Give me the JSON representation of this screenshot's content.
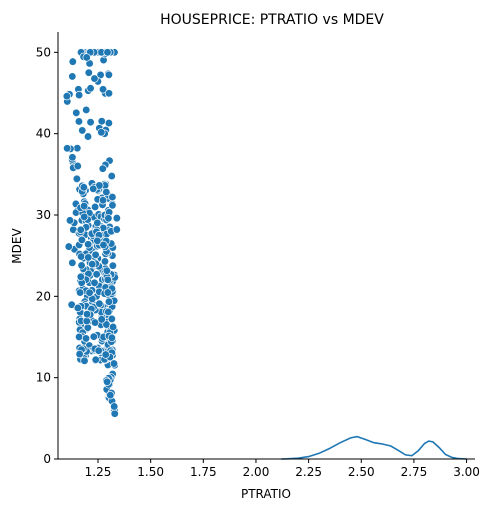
{
  "chart_data": {
    "type": "scatter",
    "title": "HOUSEPRICE: PTRATIO vs MDEV",
    "xlabel": "PTRATIO",
    "ylabel": "MDEV",
    "xlim": [
      1.06,
      3.04
    ],
    "ylim": [
      0,
      52.5
    ],
    "x_ticks": [
      "1.25",
      "1.50",
      "1.75",
      "2.00",
      "2.25",
      "2.50",
      "2.75",
      "3.00"
    ],
    "y_ticks": [
      "0",
      "10",
      "20",
      "30",
      "40",
      "50"
    ],
    "grid": false,
    "color": "#1f77b4",
    "scatter_x_range": [
      1.1,
      1.34
    ],
    "scatter_y_range": [
      5.0,
      50.0
    ],
    "kde": {
      "x": [
        2.12,
        2.15,
        2.2,
        2.25,
        2.3,
        2.35,
        2.4,
        2.45,
        2.48,
        2.52,
        2.56,
        2.6,
        2.64,
        2.68,
        2.71,
        2.74,
        2.77,
        2.8,
        2.82,
        2.84,
        2.87,
        2.9,
        2.93,
        2.96,
        3.0
      ],
      "y": [
        0.0,
        0.03,
        0.1,
        0.3,
        0.7,
        1.3,
        2.0,
        2.6,
        2.75,
        2.4,
        2.0,
        1.85,
        1.6,
        1.0,
        0.5,
        0.4,
        1.0,
        1.9,
        2.2,
        2.1,
        1.4,
        0.55,
        0.2,
        0.05,
        0.0
      ]
    }
  }
}
